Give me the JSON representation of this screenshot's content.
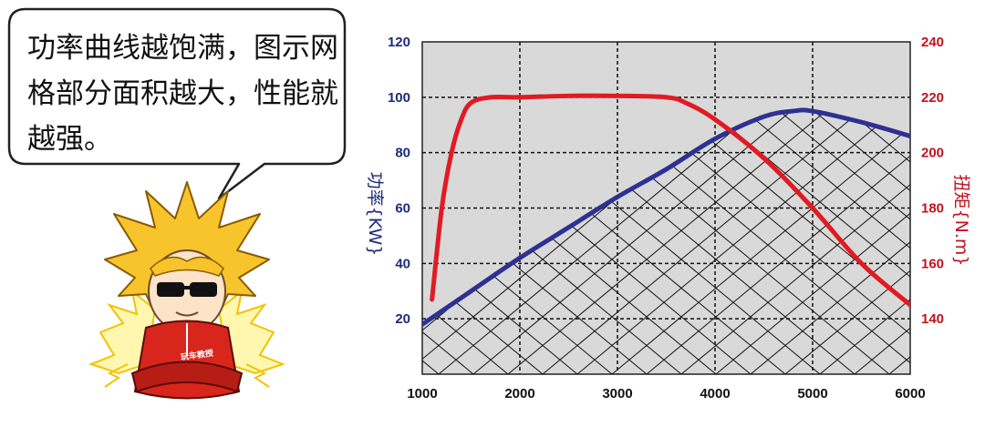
{
  "speech_bubble": {
    "text": "功率曲线越饱满，图示网格部分面积越大，性能就越强。"
  },
  "mascot": {
    "badge_text": "玩车教授"
  },
  "colors": {
    "power_line": "#2e3192",
    "torque_line": "#e01b24",
    "plot_background": "#d9d9d9",
    "left_axis_text": "#1e2a7a",
    "right_axis_text": "#c1121f",
    "mascot_hair": "#f7c52b",
    "mascot_jacket": "#d8261c"
  },
  "chart_data": {
    "type": "line",
    "title": "",
    "xlabel": "",
    "x_ticks": [
      1000,
      2000,
      3000,
      4000,
      5000,
      6000
    ],
    "xlim": [
      1000,
      6000
    ],
    "ylabel_left": "功率{KW}",
    "ylim_left": [
      0,
      120
    ],
    "y_ticks_left": [
      20,
      40,
      60,
      80,
      100,
      120
    ],
    "ylabel_right": "扭矩{N.m}",
    "ylim_right": [
      120,
      240
    ],
    "y_ticks_right": [
      140,
      160,
      180,
      200,
      220,
      240
    ],
    "grid": true,
    "series": [
      {
        "axis": "left",
        "x": [
          1000,
          1500,
          2000,
          2500,
          3000,
          3500,
          4000,
          4500,
          4800,
          5000,
          5500,
          6000
        ],
        "values": [
          18,
          30,
          42,
          53,
          64,
          74,
          85,
          93,
          95,
          95,
          91,
          86
        ]
      },
      {
        "axis": "right",
        "x": [
          1100,
          1200,
          1300,
          1400,
          1500,
          1700,
          2000,
          2500,
          3000,
          3500,
          3700,
          4000,
          4500,
          5000,
          5500,
          6000
        ],
        "values": [
          147,
          180,
          200,
          212,
          218,
          220,
          220,
          220.5,
          220.5,
          220,
          218,
          212,
          198,
          180,
          160,
          145
        ]
      }
    ]
  }
}
